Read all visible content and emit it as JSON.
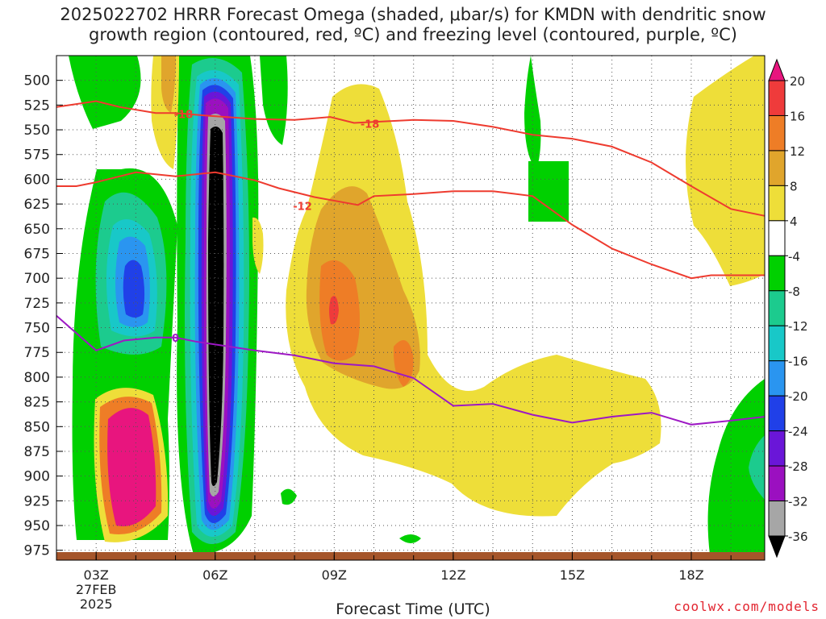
{
  "title": {
    "line1": "2025022702 HRRR Forecast Omega (shaded, μbar/s) for KMDN with dendritic snow",
    "line2": "growth region (contoured, red, ºC) and freezing level (contoured, purple, ºC)"
  },
  "credit": "coolwx.com/models",
  "chart_data": {
    "type": "heatmap",
    "xlabel": "Forecast Time (UTC)",
    "ylabel": "",
    "x_ticks": [
      {
        "hour": 3,
        "label": "03Z",
        "sub": [
          "27FEB",
          "2025"
        ]
      },
      {
        "hour": 6,
        "label": "06Z"
      },
      {
        "hour": 9,
        "label": "09Z"
      },
      {
        "hour": 12,
        "label": "12Z"
      },
      {
        "hour": 15,
        "label": "15Z"
      },
      {
        "hour": 18,
        "label": "18Z"
      }
    ],
    "xlim": [
      2,
      19.85
    ],
    "y_ticks": [
      500,
      525,
      550,
      575,
      600,
      625,
      650,
      675,
      700,
      725,
      750,
      775,
      800,
      825,
      850,
      875,
      900,
      925,
      950,
      975
    ],
    "ylim_hPa": [
      475,
      985
    ],
    "colorbar": {
      "ticks": [
        "20",
        "16",
        "12",
        "8",
        "4",
        "-4",
        "-8",
        "-12",
        "-16",
        "-20",
        "-24",
        "-28",
        "-32",
        "-36"
      ],
      "colors": [
        "#e8157e",
        "#ef3b3b",
        "#ee7d26",
        "#e0a52c",
        "#eede39",
        "#ffffff",
        "#00d000",
        "#1ccb8e",
        "#18c8c8",
        "#2a95f0",
        "#2040e8",
        "#6a16d8",
        "#9b10c0",
        "#a6a6a6",
        "#000000"
      ]
    },
    "contours": [
      {
        "kind": "dgz",
        "label": "-18",
        "color": "#ee3b2f",
        "points": [
          [
            2,
            527
          ],
          [
            2.5,
            524
          ],
          [
            3,
            521
          ],
          [
            3.6,
            527
          ],
          [
            4.5,
            533
          ],
          [
            5,
            533
          ],
          [
            5.9,
            536
          ],
          [
            7,
            539
          ],
          [
            8,
            540
          ],
          [
            8.9,
            537
          ],
          [
            9.5,
            543
          ],
          [
            10,
            542
          ],
          [
            11,
            540
          ],
          [
            12,
            541
          ],
          [
            13,
            547
          ],
          [
            14,
            555
          ],
          [
            15,
            559
          ],
          [
            16,
            567
          ],
          [
            17,
            583
          ],
          [
            18,
            607
          ],
          [
            19,
            630
          ],
          [
            19.85,
            637
          ]
        ],
        "label_at": [
          5.2,
          534
        ]
      },
      {
        "kind": "dgz",
        "label": "-18",
        "color": "#ee3b2f",
        "points": [],
        "label_at": [
          9.9,
          544
        ]
      },
      {
        "kind": "dgz",
        "label": "-12",
        "color": "#ee3b2f",
        "points": [
          [
            2,
            607
          ],
          [
            2.5,
            607
          ],
          [
            3,
            603
          ],
          [
            4,
            593
          ],
          [
            5,
            597
          ],
          [
            6,
            593
          ],
          [
            7,
            601
          ],
          [
            7.6,
            609
          ],
          [
            8.5,
            618
          ],
          [
            9.6,
            626
          ],
          [
            10,
            617
          ],
          [
            11,
            615
          ],
          [
            12,
            612
          ],
          [
            13,
            612
          ],
          [
            14,
            617
          ],
          [
            15,
            646
          ],
          [
            16,
            670
          ],
          [
            17,
            686
          ],
          [
            18,
            700
          ],
          [
            18.5,
            697
          ],
          [
            19.85,
            697
          ]
        ],
        "label_at": [
          8.2,
          627
        ]
      },
      {
        "kind": "freezing",
        "label": "0",
        "color": "#9d18c4",
        "points": [
          [
            2,
            738
          ],
          [
            3,
            773
          ],
          [
            3.7,
            763
          ],
          [
            4.5,
            760
          ],
          [
            5,
            760
          ],
          [
            5.5,
            764
          ],
          [
            6,
            767
          ],
          [
            7,
            773
          ],
          [
            8,
            778
          ],
          [
            9,
            786
          ],
          [
            10,
            789
          ],
          [
            11,
            801
          ],
          [
            12,
            829
          ],
          [
            13,
            827
          ],
          [
            14,
            838
          ],
          [
            15,
            846
          ],
          [
            16,
            840
          ],
          [
            17,
            836
          ],
          [
            18,
            848
          ],
          [
            19,
            844
          ],
          [
            19.85,
            840
          ]
        ],
        "label_at": [
          5,
          760
        ]
      }
    ]
  }
}
